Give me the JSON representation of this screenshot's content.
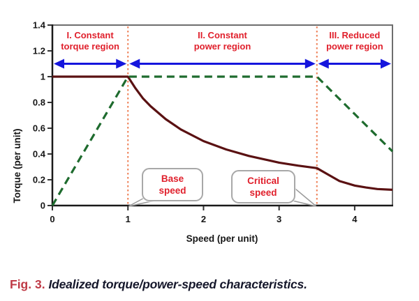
{
  "figure": {
    "caption_label": "Fig. 3.",
    "caption_text": "Idealized torque/power-speed characteristics."
  },
  "colors": {
    "torque_line": "#5a1112",
    "power_line": "#1e6b2e",
    "boundary_line": "#ee7f55",
    "arrow_blue": "#1515dd",
    "region_text_red": "#e0202c",
    "callout_text_red": "#e0202c",
    "caption_label_red": "#bf3b47",
    "caption_text_dark": "#15172b",
    "axis_black": "#1a1a1a",
    "border_gray": "#6e6e6e",
    "callout_border_gray": "#a8a8a8"
  },
  "chart_data": {
    "type": "line",
    "title": "",
    "xlabel": "Speed (per unit)",
    "ylabel": "Torque (per unit)",
    "xlim": [
      0,
      4.5
    ],
    "ylim": [
      0,
      1.4
    ],
    "x_tick_values": [
      0,
      1,
      2,
      3,
      4
    ],
    "x_tick_labels": [
      "0",
      "1",
      "2",
      "3",
      "4"
    ],
    "y_tick_values": [
      0,
      0.2,
      0.4,
      0.6,
      0.8,
      1.0,
      1.2,
      1.4
    ],
    "y_tick_labels": [
      "0",
      "0.2",
      "0.4",
      "0.6",
      "0.8",
      "1",
      "1.2",
      "1.4"
    ],
    "grid": false,
    "legend": "none",
    "series": [
      {
        "name": "torque",
        "style": "solid",
        "color": "#5a1112",
        "points": [
          [
            0,
            1
          ],
          [
            1,
            1
          ],
          [
            1.1,
            0.91
          ],
          [
            1.2,
            0.83
          ],
          [
            1.3,
            0.77
          ],
          [
            1.5,
            0.67
          ],
          [
            1.7,
            0.59
          ],
          [
            2,
            0.5
          ],
          [
            2.3,
            0.435
          ],
          [
            2.6,
            0.385
          ],
          [
            3,
            0.333
          ],
          [
            3.25,
            0.31
          ],
          [
            3.5,
            0.29
          ],
          [
            3.65,
            0.24
          ],
          [
            3.8,
            0.19
          ],
          [
            4,
            0.155
          ],
          [
            4.15,
            0.14
          ],
          [
            4.3,
            0.128
          ],
          [
            4.5,
            0.122
          ]
        ]
      },
      {
        "name": "power",
        "style": "dashed",
        "color": "#1e6b2e",
        "points": [
          [
            0,
            0
          ],
          [
            1,
            1
          ],
          [
            3.5,
            1
          ],
          [
            4.5,
            0.42
          ]
        ]
      }
    ],
    "region_boundaries_x": [
      1,
      3.5
    ],
    "region_arrow_y": 1.1,
    "regions": [
      {
        "line1": "I. Constant",
        "line2": "torque region",
        "x_start": 0,
        "x_end": 1
      },
      {
        "line1": "II. Constant",
        "line2": "power region",
        "x_start": 1,
        "x_end": 3.5
      },
      {
        "line1": "III. Reduced",
        "line2": "power region",
        "x_start": 3.5,
        "x_end": 4.5
      }
    ],
    "callouts": [
      {
        "line1": "Base",
        "line2": "speed",
        "target_x": 1
      },
      {
        "line1": "Critical",
        "line2": "speed",
        "target_x": 3.5
      }
    ]
  }
}
